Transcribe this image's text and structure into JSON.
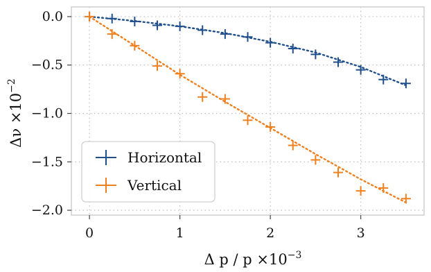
{
  "chart_data": {
    "type": "scatter",
    "title": "",
    "xlabel": "Δ p / p ×10",
    "xlabel_exp": "−3",
    "ylabel": "Δν ×10",
    "ylabel_exp": "−2",
    "xlim": [
      -0.2,
      3.7
    ],
    "ylim": [
      -2.05,
      0.1
    ],
    "x_ticks": [
      0,
      1,
      2,
      3
    ],
    "x_tick_labels": [
      "0",
      "1",
      "2",
      "3"
    ],
    "y_ticks": [
      0.0,
      -0.5,
      -1.0,
      -1.5,
      -2.0
    ],
    "y_tick_labels": [
      "0.0",
      "−0.5",
      "−1.0",
      "−1.5",
      "−2.0"
    ],
    "grid": true,
    "legend_position": "lower-left",
    "series": [
      {
        "name": "Horizontal",
        "color": "#1f4e8c",
        "x": [
          0.0,
          0.25,
          0.5,
          0.75,
          1.0,
          1.25,
          1.5,
          1.75,
          2.0,
          2.25,
          2.5,
          2.75,
          3.0,
          3.25,
          3.5
        ],
        "y": [
          0.0,
          -0.02,
          -0.05,
          -0.09,
          -0.1,
          -0.14,
          -0.18,
          -0.21,
          -0.27,
          -0.33,
          -0.39,
          -0.47,
          -0.55,
          -0.65,
          -0.69
        ],
        "fit": [
          [
            0.0,
            0.0
          ],
          [
            0.5,
            -0.045
          ],
          [
            1.0,
            -0.1
          ],
          [
            1.5,
            -0.17
          ],
          [
            2.0,
            -0.26
          ],
          [
            2.5,
            -0.37
          ],
          [
            3.0,
            -0.52
          ],
          [
            3.5,
            -0.71
          ]
        ]
      },
      {
        "name": "Vertical",
        "color": "#f07f1e",
        "x": [
          0.0,
          0.25,
          0.5,
          0.75,
          1.0,
          1.25,
          1.5,
          1.75,
          2.0,
          2.25,
          2.5,
          2.75,
          3.0,
          3.25,
          3.5
        ],
        "y": [
          0.0,
          -0.18,
          -0.3,
          -0.51,
          -0.59,
          -0.83,
          -0.85,
          -1.07,
          -1.14,
          -1.33,
          -1.48,
          -1.61,
          -1.8,
          -1.77,
          -1.88
        ],
        "fit": [
          [
            0.0,
            0.0
          ],
          [
            0.5,
            -0.3
          ],
          [
            1.0,
            -0.6
          ],
          [
            1.5,
            -0.88
          ],
          [
            2.0,
            -1.15
          ],
          [
            2.5,
            -1.42
          ],
          [
            3.0,
            -1.68
          ],
          [
            3.5,
            -1.92
          ]
        ]
      }
    ]
  }
}
